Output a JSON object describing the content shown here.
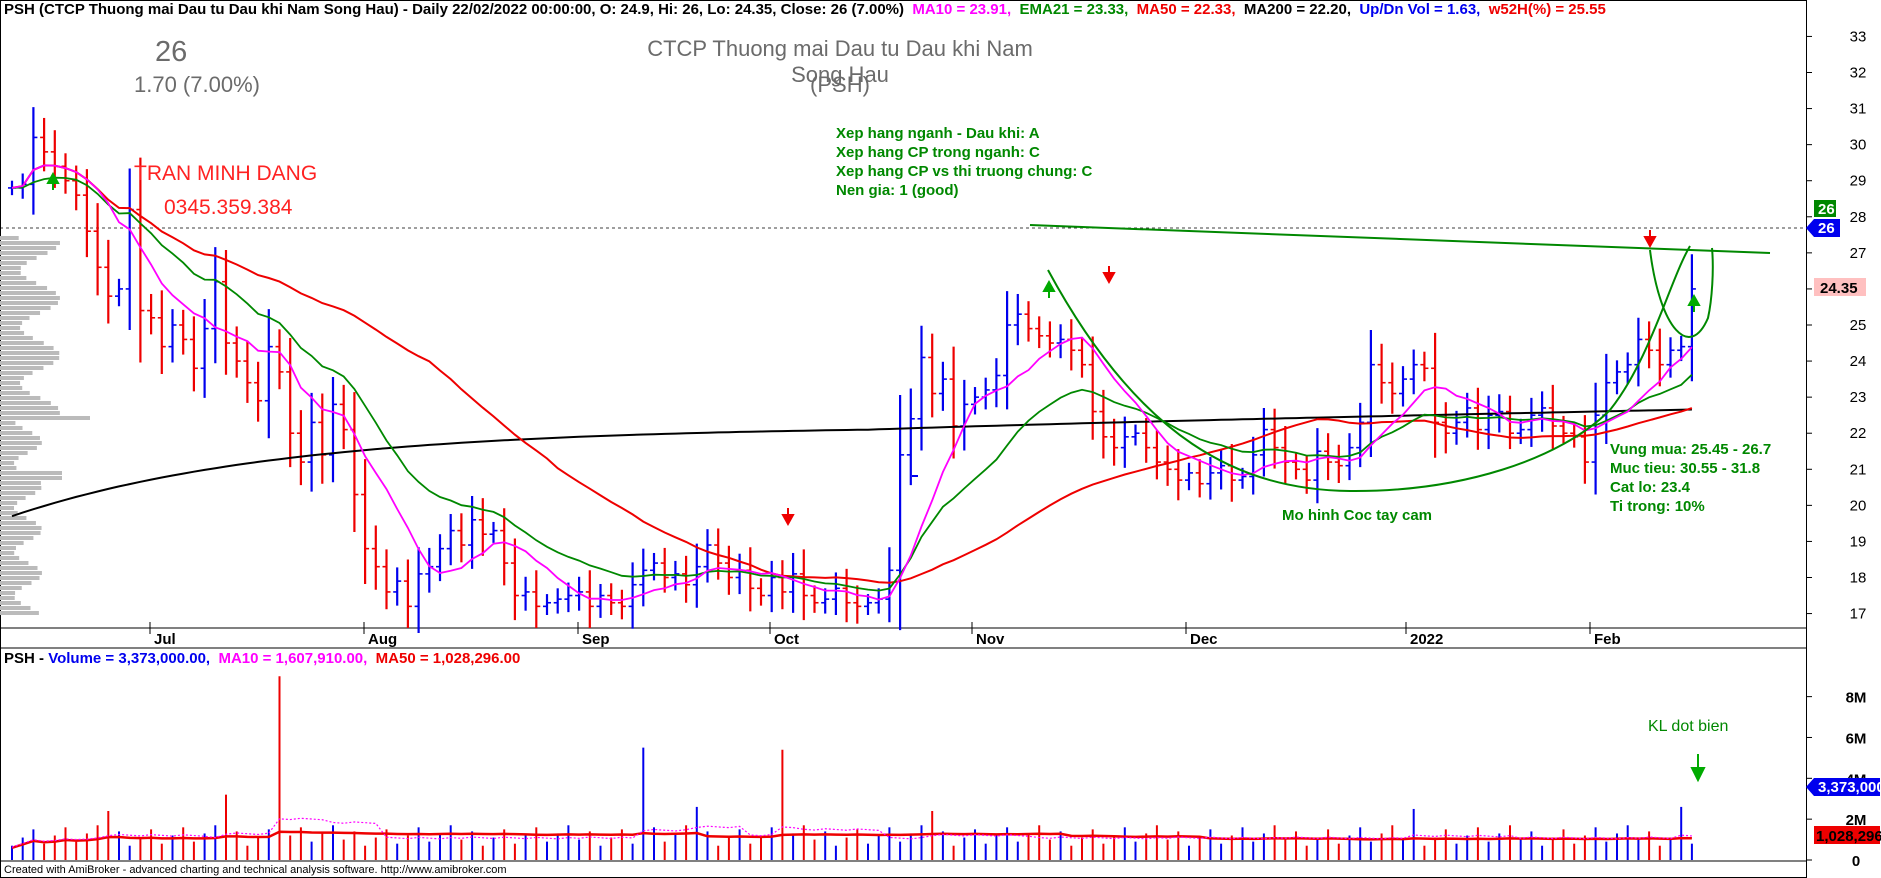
{
  "header": {
    "symbol_line": "PSH (CTCP Thuong mai Dau tu Dau khi Nam Song Hau) - Daily 22/02/2022 00:00:00, O: 24.9, Hi: 26, Lo: 24.35, Close: 26 (7.00%)",
    "ma10": "MA10 = 23.91,",
    "ema21": "EMA21 = 23.33,",
    "ma50": "MA50 = 22.33,",
    "ma200": "MA200 = 22.20,",
    "updn": "Up/Dn Vol = 1.63,",
    "w52": "w52H(%) = 25.55"
  },
  "vol_header": {
    "prefix": "PSH - ",
    "volume": "Volume = 3,373,000.00,",
    "ma10": "MA10 = 1,607,910.00,",
    "ma50": "MA50 = 1,028,296.00"
  },
  "overlay": {
    "last_price": "26",
    "change": "1.70 (7.00%)",
    "company": "CTCP Thuong mai Dau tu Dau khi Nam Song Hau",
    "ticker": "(PSH)",
    "author": "TRAN MINH DANG",
    "phone": "0345.359.384",
    "ratings": [
      "Xep hang nganh - Dau khi: A",
      "Xep hang CP trong nganh: C",
      "Xep hang CP vs thi truong chung: C",
      "Nen gia: 1 (good)"
    ],
    "plan": [
      "Vung mua: 25.45 - 26.7",
      "Muc tieu: 30.55 - 31.8",
      "Cat lo: 23.4",
      "Ti trong: 10%"
    ],
    "pattern": "Mo hinh Coc tay cam",
    "volume_note": "KL dot bien"
  },
  "footer": "Created with AmiBroker - advanced charting and technical analysis software. http://www.amibroker.com",
  "colors": {
    "up": "#0000ee",
    "down": "#ee0000",
    "ma10": "#ff00ff",
    "ema21": "#008800",
    "ma50": "#ee0000",
    "ma200": "#000000",
    "annotation": "#008800"
  },
  "chart_data": {
    "type": "candlestick",
    "price_axis": {
      "ticks": [
        "17",
        "18",
        "19",
        "20",
        "21",
        "22",
        "23",
        "24",
        "25",
        "26",
        "27",
        "28",
        "29",
        "30",
        "31",
        "32",
        "33"
      ],
      "range": [
        16.6,
        33.4
      ]
    },
    "month_labels": [
      "Jul",
      "Aug",
      "Sep",
      "Oct",
      "Nov",
      "Dec",
      "2022",
      "Feb"
    ],
    "price_badges": {
      "last_close": "26",
      "prev_label": "26",
      "low": "24.35"
    },
    "volume_axis": {
      "ticks": [
        "0",
        "2M",
        "4M",
        "6M",
        "8M"
      ],
      "range": [
        0,
        9500000
      ]
    },
    "volume_badges": {
      "volume": "3,373,000",
      "ma50": "1,028,296"
    },
    "closes": [
      28.8,
      28.9,
      30.2,
      29.8,
      29.4,
      29.0,
      28.6,
      27.6,
      26.6,
      25.8,
      26.0,
      28.2,
      25.4,
      25.2,
      24.4,
      25.0,
      24.6,
      23.8,
      24.9,
      26.2,
      24.5,
      24.0,
      23.4,
      22.9,
      24.4,
      23.7,
      22.0,
      21.2,
      22.3,
      21.4,
      22.8,
      22.1,
      20.3,
      18.8,
      18.3,
      17.6,
      17.9,
      17.2,
      18.1,
      18.3,
      18.8,
      19.3,
      18.9,
      19.6,
      19.2,
      19.3,
      18.4,
      17.5,
      17.6,
      17.2,
      17.3,
      17.4,
      17.5,
      17.6,
      17.2,
      17.5,
      17.3,
      17.2,
      17.8,
      18.2,
      18.4,
      18.0,
      18.1,
      17.8,
      18.3,
      18.9,
      18.4,
      18.0,
      18.2,
      17.7,
      17.5,
      18.0,
      17.6,
      18.1,
      17.5,
      17.3,
      17.4,
      17.7,
      17.3,
      17.2,
      17.3,
      17.4,
      18.2,
      21.4,
      22.4,
      24.1,
      23.1,
      23.5,
      22.2,
      22.8,
      23.0,
      23.2,
      23.6,
      25.0,
      25.3,
      24.9,
      24.7,
      24.5,
      24.6,
      24.3,
      23.9,
      22.6,
      21.9,
      21.6,
      21.9,
      22.0,
      21.6,
      21.2,
      21.0,
      20.7,
      20.9,
      20.6,
      20.9,
      21.1,
      20.7,
      20.8,
      21.4,
      22.1,
      21.6,
      21.2,
      21.0,
      20.7,
      21.5,
      21.2,
      21.1,
      21.6,
      22.3,
      23.9,
      23.4,
      23.1,
      23.5,
      23.9,
      23.8,
      22.3,
      22.0,
      22.3,
      22.7,
      22.1,
      22.5,
      22.6,
      22.0,
      22.1,
      22.5,
      22.7,
      22.2,
      22.0,
      21.9,
      21.2,
      22.5,
      23.4,
      23.7,
      23.9,
      24.6,
      24.3,
      23.9,
      24.3,
      24.4,
      26.0
    ]
  }
}
